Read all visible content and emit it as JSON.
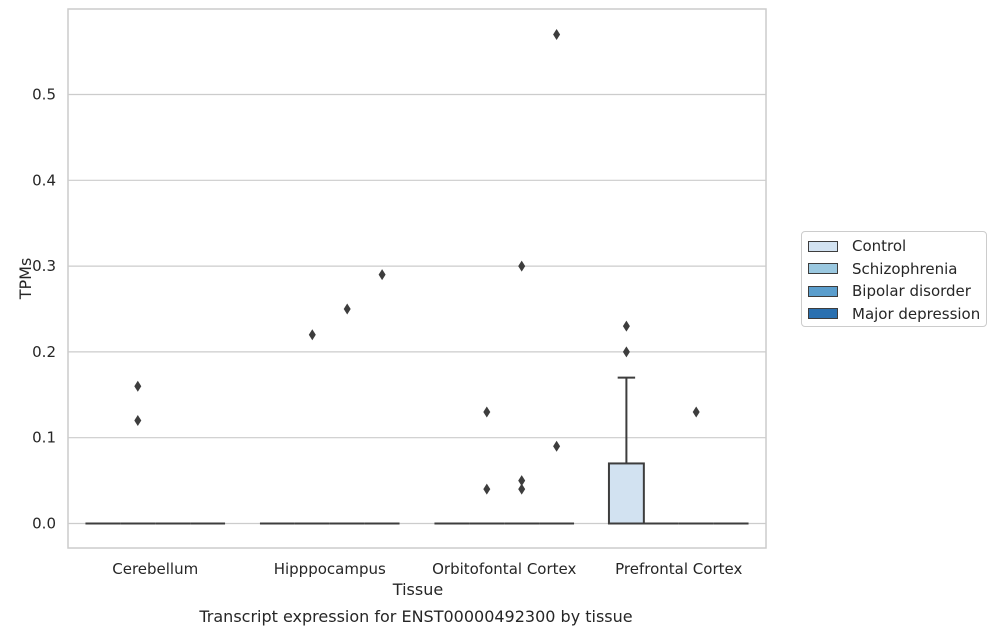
{
  "chart_data": {
    "type": "box",
    "caption": "Transcript expression for ENST00000492300 by tissue",
    "xlabel": "Tissue",
    "ylabel": "TPMs",
    "ylim": [
      -0.028,
      0.597
    ],
    "yticks": [
      0.0,
      0.1,
      0.2,
      0.3,
      0.4,
      0.5
    ],
    "ytick_labels": [
      "0.0",
      "0.1",
      "0.2",
      "0.3",
      "0.4",
      "0.5"
    ],
    "categories": [
      "Cerebellum",
      "Hipppocampus",
      "Orbitofontal Cortex",
      "Prefrontal Cortex"
    ],
    "grid": "horizontal",
    "legend_position": "right",
    "series": [
      {
        "name": "Control",
        "color": "#d2e2f1",
        "boxes": [
          {
            "category": "Cerebellum",
            "q1": 0,
            "median": 0,
            "q3": 0,
            "whisker_low": 0,
            "whisker_high": 0,
            "outliers": []
          },
          {
            "category": "Hipppocampus",
            "q1": 0,
            "median": 0,
            "q3": 0,
            "whisker_low": 0,
            "whisker_high": 0,
            "outliers": []
          },
          {
            "category": "Orbitofontal Cortex",
            "q1": 0,
            "median": 0,
            "q3": 0,
            "whisker_low": 0,
            "whisker_high": 0,
            "outliers": []
          },
          {
            "category": "Prefrontal Cortex",
            "q1": 0,
            "median": 0,
            "q3": 0.07,
            "whisker_low": 0,
            "whisker_high": 0.17,
            "outliers": [
              0.23,
              0.2
            ]
          }
        ]
      },
      {
        "name": "Schizophrenia",
        "color": "#9ac8e0",
        "boxes": [
          {
            "category": "Cerebellum",
            "q1": 0,
            "median": 0,
            "q3": 0,
            "whisker_low": 0,
            "whisker_high": 0,
            "outliers": [
              0.16,
              0.12
            ]
          },
          {
            "category": "Hipppocampus",
            "q1": 0,
            "median": 0,
            "q3": 0,
            "whisker_low": 0,
            "whisker_high": 0,
            "outliers": [
              0.22
            ]
          },
          {
            "category": "Orbitofontal Cortex",
            "q1": 0,
            "median": 0,
            "q3": 0,
            "whisker_low": 0,
            "whisker_high": 0,
            "outliers": [
              0.13,
              0.04
            ]
          },
          {
            "category": "Prefrontal Cortex",
            "q1": 0,
            "median": 0,
            "q3": 0,
            "whisker_low": 0,
            "whisker_high": 0,
            "outliers": []
          }
        ]
      },
      {
        "name": "Bipolar disorder",
        "color": "#5b9ecd",
        "boxes": [
          {
            "category": "Cerebellum",
            "q1": 0,
            "median": 0,
            "q3": 0,
            "whisker_low": 0,
            "whisker_high": 0,
            "outliers": []
          },
          {
            "category": "Hipppocampus",
            "q1": 0,
            "median": 0,
            "q3": 0,
            "whisker_low": 0,
            "whisker_high": 0,
            "outliers": [
              0.25
            ]
          },
          {
            "category": "Orbitofontal Cortex",
            "q1": 0,
            "median": 0,
            "q3": 0,
            "whisker_low": 0,
            "whisker_high": 0,
            "outliers": [
              0.3,
              0.05,
              0.04
            ]
          },
          {
            "category": "Prefrontal Cortex",
            "q1": 0,
            "median": 0,
            "q3": 0,
            "whisker_low": 0,
            "whisker_high": 0,
            "outliers": [
              0.13
            ]
          }
        ]
      },
      {
        "name": "Major depression",
        "color": "#2a70b0",
        "boxes": [
          {
            "category": "Cerebellum",
            "q1": 0,
            "median": 0,
            "q3": 0,
            "whisker_low": 0,
            "whisker_high": 0,
            "outliers": []
          },
          {
            "category": "Hipppocampus",
            "q1": 0,
            "median": 0,
            "q3": 0,
            "whisker_low": 0,
            "whisker_high": 0,
            "outliers": [
              0.29
            ]
          },
          {
            "category": "Orbitofontal Cortex",
            "q1": 0,
            "median": 0,
            "q3": 0,
            "whisker_low": 0,
            "whisker_high": 0,
            "outliers": [
              0.57,
              0.09
            ]
          },
          {
            "category": "Prefrontal Cortex",
            "q1": 0,
            "median": 0,
            "q3": 0,
            "whisker_low": 0,
            "whisker_high": 0,
            "outliers": []
          }
        ]
      }
    ]
  }
}
